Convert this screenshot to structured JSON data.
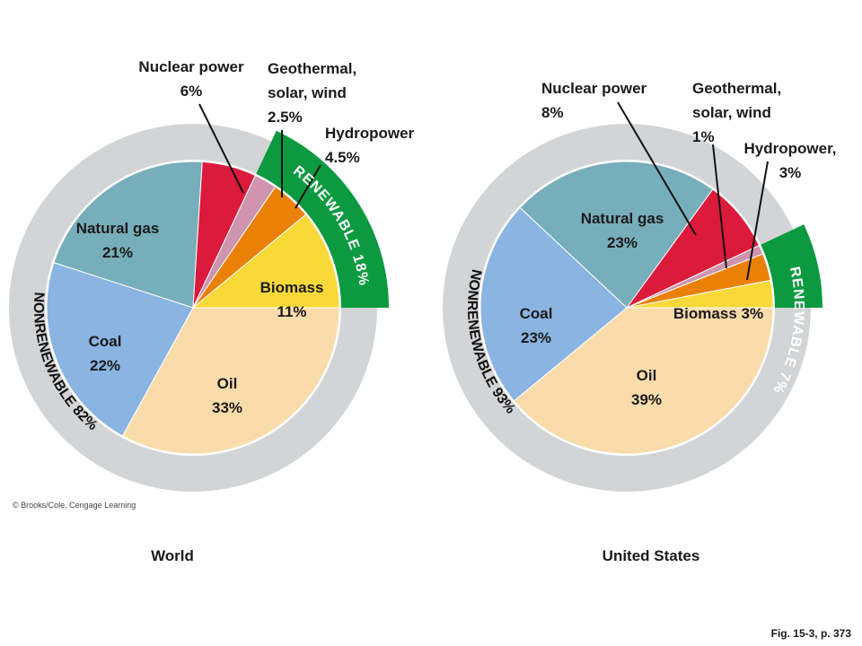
{
  "chart_data": [
    {
      "type": "pie",
      "caption": "World",
      "slices": [
        {
          "name": "Oil",
          "value": 33,
          "label": "Oil",
          "pct": "33%",
          "color": "#f9dcaa"
        },
        {
          "name": "Coal",
          "value": 22,
          "label": "Coal",
          "pct": "22%",
          "color": "#8ab4e2"
        },
        {
          "name": "Natural gas",
          "value": 21,
          "label": "Natural gas",
          "pct": "21%",
          "color": "#77aebb"
        },
        {
          "name": "Nuclear power",
          "value": 6,
          "label": "Nuclear power",
          "pct": "6%",
          "color": "#dc1a3b"
        },
        {
          "name": "Geothermal, solar, wind",
          "value": 2.5,
          "label": "Geothermal,\nsolar, wind",
          "pct": "2.5%",
          "color": "#cf94ae"
        },
        {
          "name": "Hydropower",
          "value": 4.5,
          "label": "Hydropower",
          "pct": "4.5%",
          "color": "#ea8006"
        },
        {
          "name": "Biomass",
          "value": 11,
          "label": "Biomass",
          "pct": "11%",
          "color": "#fad838"
        }
      ],
      "renewable_label": "RENEWABLE 18%",
      "nonrenewable_label": "NONRENEWABLE 82%"
    },
    {
      "type": "pie",
      "caption": "United States",
      "slices": [
        {
          "name": "Oil",
          "value": 39,
          "label": "Oil",
          "pct": "39%",
          "color": "#f9dcaa"
        },
        {
          "name": "Coal",
          "value": 23,
          "label": "Coal",
          "pct": "23%",
          "color": "#8ab4e2"
        },
        {
          "name": "Natural gas",
          "value": 23,
          "label": "Natural gas",
          "pct": "23%",
          "color": "#77aebb"
        },
        {
          "name": "Nuclear power",
          "value": 8,
          "label": "Nuclear power",
          "pct": "8%",
          "color": "#dc1a3b"
        },
        {
          "name": "Geothermal, solar, wind",
          "value": 1,
          "label": "Geothermal,\nsolar, wind",
          "pct": "1%",
          "color": "#cf94ae"
        },
        {
          "name": "Hydropower",
          "value": 3,
          "label": "Hydropower,",
          "pct": "3%",
          "color": "#ea8006"
        },
        {
          "name": "Biomass",
          "value": 3,
          "label": "Biomass",
          "pct": "3%",
          "color": "#fad838"
        }
      ],
      "renewable_label": "RENEWABLE 7%",
      "nonrenewable_label": "NONRENEWABLE 93%"
    }
  ],
  "colors": {
    "ring": "#d3d4d6",
    "renewable_band": "#0b9a40",
    "leader": "#111111"
  },
  "copyright": "© Brooks/Cole, Cengage Learning",
  "figure_ref": "Fig. 15-3, p. 373"
}
